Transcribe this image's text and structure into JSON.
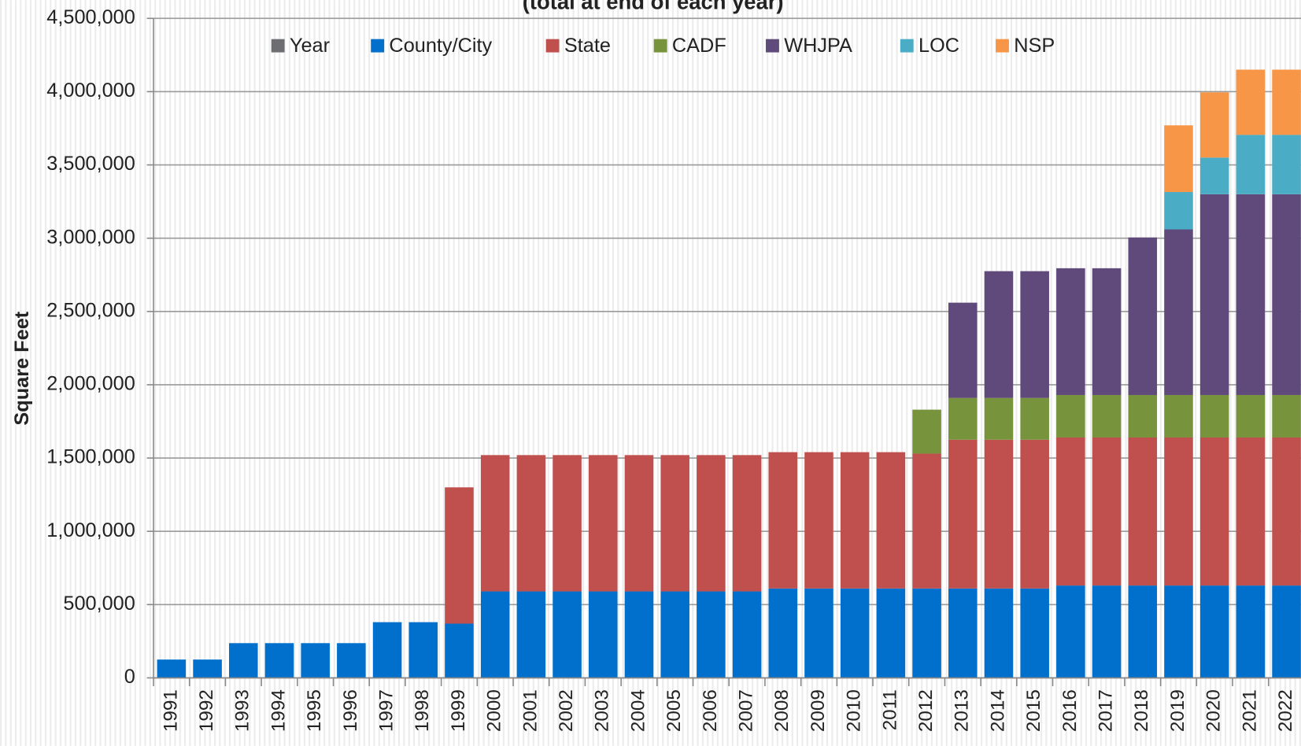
{
  "chart_data": {
    "type": "stacked_bar",
    "subtitle": "(total at end of each year)",
    "ylabel": "Square Feet",
    "categories": [
      "1991",
      "1992",
      "1993",
      "1994",
      "1995",
      "1996",
      "1997",
      "1998",
      "1999",
      "2000",
      "2001",
      "2002",
      "2003",
      "2004",
      "2005",
      "2006",
      "2007",
      "2008",
      "2009",
      "2010",
      "2011",
      "2012",
      "2013",
      "2014",
      "2015",
      "2016",
      "2017",
      "2018",
      "2019",
      "2020",
      "2021",
      "2022"
    ],
    "series": [
      {
        "name": "Year",
        "color": "#6d6e71",
        "values": [
          null,
          null,
          null,
          null,
          null,
          null,
          null,
          null,
          null,
          null,
          null,
          null,
          null,
          null,
          null,
          null,
          null,
          null,
          null,
          null,
          null,
          null,
          null,
          null,
          null,
          null,
          null,
          null,
          null,
          null,
          null,
          null
        ]
      },
      {
        "name": "County/City",
        "color": "#0070cc",
        "values": [
          125000,
          125000,
          237000,
          237000,
          237000,
          237000,
          380000,
          380000,
          370000,
          590000,
          590000,
          590000,
          590000,
          590000,
          590000,
          590000,
          590000,
          610000,
          610000,
          610000,
          610000,
          610000,
          610000,
          610000,
          610000,
          630000,
          630000,
          630000,
          630000,
          630000,
          630000,
          630000
        ]
      },
      {
        "name": "State",
        "color": "#c0504d",
        "values": [
          null,
          null,
          null,
          null,
          null,
          null,
          null,
          null,
          930000,
          930000,
          930000,
          930000,
          930000,
          930000,
          930000,
          930000,
          930000,
          930000,
          930000,
          930000,
          930000,
          920000,
          1015000,
          1015000,
          1015000,
          1010000,
          1010000,
          1010000,
          1010000,
          1010000,
          1010000,
          1010000
        ]
      },
      {
        "name": "CADF",
        "color": "#77933c",
        "values": [
          null,
          null,
          null,
          null,
          null,
          null,
          null,
          null,
          null,
          null,
          null,
          null,
          null,
          null,
          null,
          null,
          null,
          null,
          null,
          null,
          null,
          300000,
          285000,
          285000,
          285000,
          290000,
          290000,
          290000,
          290000,
          290000,
          290000,
          290000
        ]
      },
      {
        "name": "WHJPA",
        "color": "#604a7b",
        "values": [
          null,
          null,
          null,
          null,
          null,
          null,
          null,
          null,
          null,
          null,
          null,
          null,
          null,
          null,
          null,
          null,
          null,
          null,
          null,
          null,
          null,
          null,
          650000,
          865000,
          865000,
          865000,
          865000,
          1075000,
          1130000,
          1370000,
          1370000,
          1370000
        ]
      },
      {
        "name": "LOC",
        "color": "#4bacc6",
        "values": [
          null,
          null,
          null,
          null,
          null,
          null,
          null,
          null,
          null,
          null,
          null,
          null,
          null,
          null,
          null,
          null,
          null,
          null,
          null,
          null,
          null,
          null,
          null,
          null,
          null,
          null,
          null,
          null,
          255000,
          250000,
          405000,
          405000
        ]
      },
      {
        "name": "NSP",
        "color": "#f79646",
        "values": [
          null,
          null,
          null,
          null,
          null,
          null,
          null,
          null,
          null,
          null,
          null,
          null,
          null,
          null,
          null,
          null,
          null,
          null,
          null,
          null,
          null,
          null,
          null,
          null,
          null,
          null,
          null,
          null,
          455000,
          445000,
          445000,
          445000
        ]
      }
    ],
    "ylim": [
      0,
      4500000
    ],
    "yticks": [
      0,
      {
        "value": 500000,
        "label": "500,000"
      },
      {
        "value": 1000000,
        "label": "1,000,000"
      },
      {
        "value": 1500000,
        "label": "1,500,000"
      },
      {
        "value": 2000000,
        "label": "2,000,000"
      },
      {
        "value": 2500000,
        "label": "2,500,000"
      },
      {
        "value": 3000000,
        "label": "3,000,000"
      },
      {
        "value": 3500000,
        "label": "3,500,000"
      },
      {
        "value": 4000000,
        "label": "4,000,000"
      },
      {
        "value": 4500000,
        "label": "4,500,000"
      }
    ],
    "grid": true,
    "legend": "top"
  }
}
